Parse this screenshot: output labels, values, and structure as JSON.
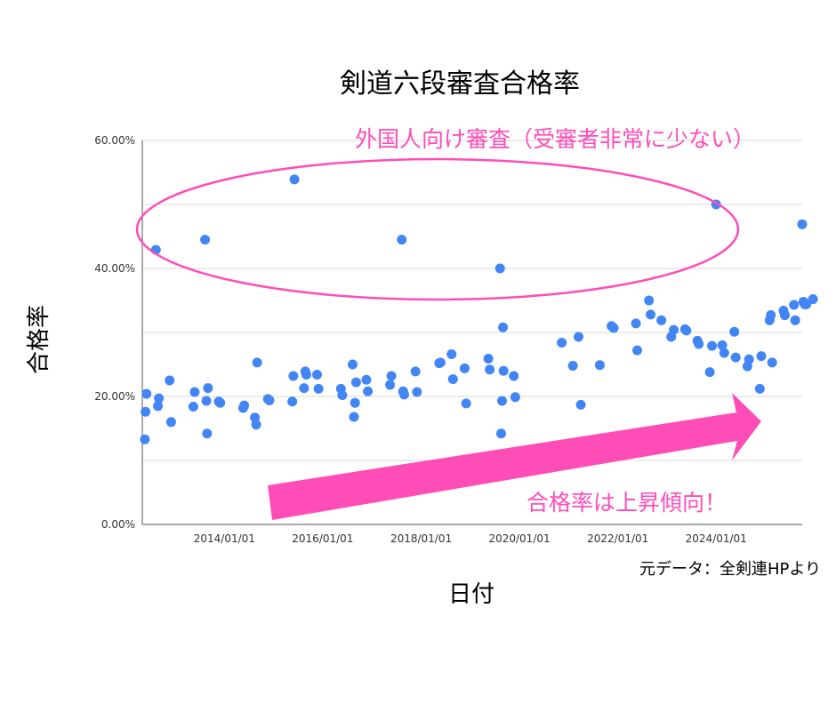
{
  "chart_data": {
    "type": "scatter",
    "title": "剣道六段審査合格率",
    "xlabel": "日付",
    "ylabel": "合格率",
    "source_note": "元データ：全剣連HPより",
    "x_range": [
      "2012-05-01",
      "2025-10-01"
    ],
    "ylim": [
      0,
      0.6
    ],
    "y_ticks": [
      0,
      0.2,
      0.4,
      0.6
    ],
    "y_tick_labels": [
      "0.00%",
      "20.00%",
      "40.00%",
      "60.00%"
    ],
    "x_ticks": [
      "2014-01-01",
      "2016-01-01",
      "2018-01-01",
      "2020-01-01",
      "2022-01-01",
      "2024-01-01"
    ],
    "x_tick_labels": [
      "2014/01/01",
      "2016/01/01",
      "2018/01/01",
      "2020/01/01",
      "2022/01/01",
      "2024/01/01"
    ],
    "grid": true,
    "colors": {
      "points": "#4285f4",
      "annotation": "#ff4db8",
      "grid": "#d9d9d9"
    },
    "annotations": [
      {
        "text": "外国人向け審査（受審者非常に少ない）",
        "kind": "ellipse"
      },
      {
        "text": "合格率は上昇傾向！",
        "kind": "arrow"
      }
    ],
    "points": [
      {
        "x": "2012-05-20",
        "y": 0.133
      },
      {
        "x": "2012-05-25",
        "y": 0.176
      },
      {
        "x": "2012-06-01",
        "y": 0.204
      },
      {
        "x": "2012-08-10",
        "y": 0.429
      },
      {
        "x": "2012-08-25",
        "y": 0.185
      },
      {
        "x": "2012-09-01",
        "y": 0.197
      },
      {
        "x": "2012-11-20",
        "y": 0.225
      },
      {
        "x": "2012-12-01",
        "y": 0.16
      },
      {
        "x": "2013-05-15",
        "y": 0.184
      },
      {
        "x": "2013-05-25",
        "y": 0.207
      },
      {
        "x": "2013-08-10",
        "y": 0.445
      },
      {
        "x": "2013-08-20",
        "y": 0.193
      },
      {
        "x": "2013-08-25",
        "y": 0.142
      },
      {
        "x": "2013-09-01",
        "y": 0.213
      },
      {
        "x": "2013-11-20",
        "y": 0.192
      },
      {
        "x": "2013-12-01",
        "y": 0.19
      },
      {
        "x": "2014-05-20",
        "y": 0.182
      },
      {
        "x": "2014-05-28",
        "y": 0.186
      },
      {
        "x": "2014-08-15",
        "y": 0.167
      },
      {
        "x": "2014-08-25",
        "y": 0.156
      },
      {
        "x": "2014-09-01",
        "y": 0.253
      },
      {
        "x": "2014-11-20",
        "y": 0.196
      },
      {
        "x": "2014-12-01",
        "y": 0.194
      },
      {
        "x": "2015-05-20",
        "y": 0.192
      },
      {
        "x": "2015-05-28",
        "y": 0.232
      },
      {
        "x": "2015-06-05",
        "y": 0.539
      },
      {
        "x": "2015-08-15",
        "y": 0.213
      },
      {
        "x": "2015-08-25",
        "y": 0.239
      },
      {
        "x": "2015-09-01",
        "y": 0.234
      },
      {
        "x": "2015-11-20",
        "y": 0.234
      },
      {
        "x": "2015-12-01",
        "y": 0.212
      },
      {
        "x": "2016-05-15",
        "y": 0.212
      },
      {
        "x": "2016-05-25",
        "y": 0.202
      },
      {
        "x": "2016-08-10",
        "y": 0.25
      },
      {
        "x": "2016-08-20",
        "y": 0.168
      },
      {
        "x": "2016-08-28",
        "y": 0.19
      },
      {
        "x": "2016-09-05",
        "y": 0.222
      },
      {
        "x": "2016-11-20",
        "y": 0.226
      },
      {
        "x": "2016-12-01",
        "y": 0.208
      },
      {
        "x": "2017-05-15",
        "y": 0.218
      },
      {
        "x": "2017-05-25",
        "y": 0.232
      },
      {
        "x": "2017-08-10",
        "y": 0.445
      },
      {
        "x": "2017-08-20",
        "y": 0.208
      },
      {
        "x": "2017-08-28",
        "y": 0.203
      },
      {
        "x": "2017-11-20",
        "y": 0.239
      },
      {
        "x": "2017-12-01",
        "y": 0.207
      },
      {
        "x": "2018-05-15",
        "y": 0.252
      },
      {
        "x": "2018-05-25",
        "y": 0.253
      },
      {
        "x": "2018-08-15",
        "y": 0.266
      },
      {
        "x": "2018-08-25",
        "y": 0.227
      },
      {
        "x": "2018-11-20",
        "y": 0.244
      },
      {
        "x": "2018-12-01",
        "y": 0.189
      },
      {
        "x": "2019-05-15",
        "y": 0.259
      },
      {
        "x": "2019-05-25",
        "y": 0.242
      },
      {
        "x": "2019-08-10",
        "y": 0.4
      },
      {
        "x": "2019-08-18",
        "y": 0.142
      },
      {
        "x": "2019-08-25",
        "y": 0.193
      },
      {
        "x": "2019-09-01",
        "y": 0.308
      },
      {
        "x": "2019-09-05",
        "y": 0.24
      },
      {
        "x": "2019-11-20",
        "y": 0.232
      },
      {
        "x": "2019-12-01",
        "y": 0.199
      },
      {
        "x": "2020-11-10",
        "y": 0.284
      },
      {
        "x": "2021-02-01",
        "y": 0.248
      },
      {
        "x": "2021-03-15",
        "y": 0.293
      },
      {
        "x": "2021-04-01",
        "y": 0.187
      },
      {
        "x": "2021-08-20",
        "y": 0.249
      },
      {
        "x": "2021-11-15",
        "y": 0.31
      },
      {
        "x": "2021-12-01",
        "y": 0.307
      },
      {
        "x": "2022-05-15",
        "y": 0.314
      },
      {
        "x": "2022-05-25",
        "y": 0.272
      },
      {
        "x": "2022-08-20",
        "y": 0.35
      },
      {
        "x": "2022-09-01",
        "y": 0.328
      },
      {
        "x": "2022-11-20",
        "y": 0.319
      },
      {
        "x": "2023-02-01",
        "y": 0.293
      },
      {
        "x": "2023-02-20",
        "y": 0.304
      },
      {
        "x": "2023-05-15",
        "y": 0.305
      },
      {
        "x": "2023-05-25",
        "y": 0.303
      },
      {
        "x": "2023-08-15",
        "y": 0.287
      },
      {
        "x": "2023-08-25",
        "y": 0.282
      },
      {
        "x": "2023-11-15",
        "y": 0.238
      },
      {
        "x": "2023-12-01",
        "y": 0.279
      },
      {
        "x": "2024-01-01",
        "y": 0.5
      },
      {
        "x": "2024-02-15",
        "y": 0.28
      },
      {
        "x": "2024-03-01",
        "y": 0.268
      },
      {
        "x": "2024-05-15",
        "y": 0.301
      },
      {
        "x": "2024-05-25",
        "y": 0.261
      },
      {
        "x": "2024-08-20",
        "y": 0.247
      },
      {
        "x": "2024-09-01",
        "y": 0.258
      },
      {
        "x": "2024-11-20",
        "y": 0.212
      },
      {
        "x": "2024-12-01",
        "y": 0.263
      },
      {
        "x": "2025-02-01",
        "y": 0.319
      },
      {
        "x": "2025-02-10",
        "y": 0.327
      },
      {
        "x": "2025-02-20",
        "y": 0.253
      },
      {
        "x": "2025-05-15",
        "y": 0.334
      },
      {
        "x": "2025-05-25",
        "y": 0.327
      },
      {
        "x": "2025-08-01",
        "y": 0.343
      },
      {
        "x": "2025-08-10",
        "y": 0.319
      },
      {
        "x": "2025-10-01",
        "y": 0.469
      },
      {
        "x": "2025-10-10",
        "y": 0.348
      },
      {
        "x": "2025-10-20",
        "y": 0.344
      },
      {
        "x": "2025-11-01",
        "y": 0.344
      },
      {
        "x": "2025-12-20",
        "y": 0.352
      }
    ]
  }
}
